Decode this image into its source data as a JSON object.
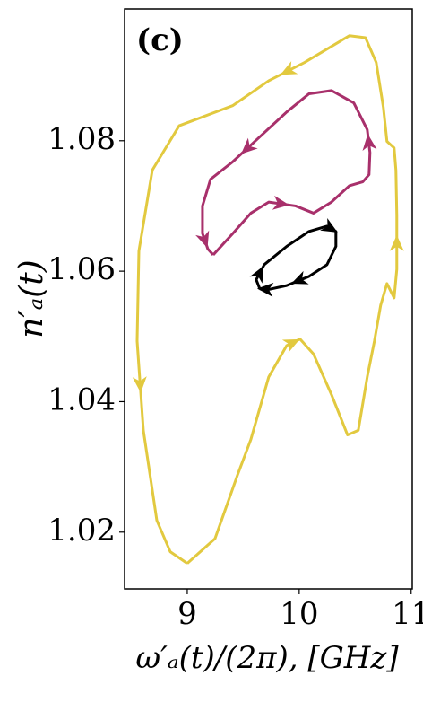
{
  "chart_data": {
    "type": "line",
    "annotation": "(c)",
    "xlabel": "ω′ₐ(t)/(2π),  [GHz]",
    "ylabel": "n′ₐ(t)",
    "xlim": [
      8.44,
      11.01
    ],
    "ylim": [
      1.0113,
      1.1002
    ],
    "xticks": [
      9,
      10,
      11
    ],
    "yticks": [
      1.02,
      1.04,
      1.06,
      1.08
    ],
    "series": [
      {
        "color": "#e2c93f",
        "x": [
          9.0,
          9.248,
          9.448,
          9.568,
          9.728,
          9.888,
          10.008,
          10.128,
          10.288,
          10.432,
          10.528,
          10.608,
          10.672,
          10.728,
          10.784,
          10.848,
          10.872,
          10.872,
          10.864,
          10.848,
          10.784,
          10.752,
          10.688,
          10.592,
          10.448,
          10.048,
          9.728,
          9.408,
          8.928,
          8.688,
          8.568,
          8.552,
          8.608,
          8.728,
          8.848,
          9.0
        ],
        "values": [
          1.0152,
          1.019,
          1.0287,
          1.0342,
          1.0438,
          1.0486,
          1.0496,
          1.0473,
          1.0411,
          1.0349,
          1.0356,
          1.0438,
          1.0493,
          1.0548,
          1.0581,
          1.0559,
          1.0603,
          1.0686,
          1.0755,
          1.0789,
          1.0799,
          1.0851,
          1.092,
          1.0958,
          1.0961,
          1.092,
          1.0892,
          1.0854,
          1.0823,
          1.0755,
          1.0631,
          1.0493,
          1.0356,
          1.0218,
          1.017,
          1.0152
        ]
      },
      {
        "color": "#a8306b",
        "x": [
          9.232,
          9.408,
          9.568,
          9.728,
          9.968,
          10.128,
          10.288,
          10.448,
          10.568,
          10.624,
          10.632,
          10.608,
          10.488,
          10.288,
          10.088,
          9.888,
          9.648,
          9.408,
          9.208,
          9.136,
          9.136,
          9.184,
          9.232
        ],
        "values": [
          1.0625,
          1.0658,
          1.0689,
          1.0706,
          1.07,
          1.0689,
          1.0706,
          1.0731,
          1.0737,
          1.0748,
          1.0782,
          1.0817,
          1.0858,
          1.0877,
          1.0872,
          1.0844,
          1.0806,
          1.0768,
          1.0741,
          1.07,
          1.0658,
          1.0634,
          1.0625
        ]
      },
      {
        "color": "#000000",
        "x": [
          9.648,
          9.616,
          9.688,
          9.888,
          10.088,
          10.248,
          10.328,
          10.328,
          10.248,
          10.088,
          9.888,
          9.728,
          9.648
        ],
        "values": [
          1.0573,
          1.0587,
          1.061,
          1.0638,
          1.0661,
          1.0669,
          1.0661,
          1.0638,
          1.061,
          1.0592,
          1.0578,
          1.0572,
          1.0573
        ]
      }
    ]
  }
}
